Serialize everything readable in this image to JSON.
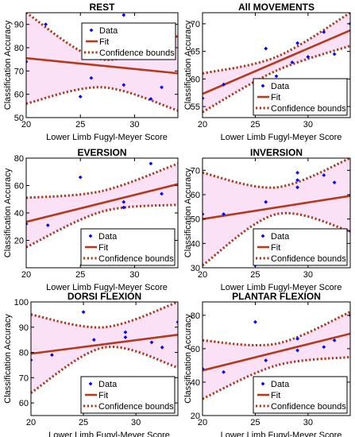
{
  "chart_data": [
    {
      "type": "scatter",
      "title": "REST",
      "xlabel": "Lower Limb Fugyl-Meyer Score",
      "ylabel": "Classification Accuracy",
      "xlim": [
        20,
        34
      ],
      "ylim": [
        50,
        95
      ],
      "xticks": [
        20,
        25,
        30
      ],
      "yticks": [
        50,
        60,
        70,
        80,
        90
      ],
      "data": [
        [
          20,
          74
        ],
        [
          21.8,
          90
        ],
        [
          25,
          59
        ],
        [
          26,
          67
        ],
        [
          29,
          94
        ],
        [
          29,
          64
        ],
        [
          31.5,
          58
        ],
        [
          32.5,
          63
        ]
      ],
      "fit": [
        75.5,
        69
      ],
      "bounds_lower": [
        [
          20,
          56
        ],
        [
          27,
          63
        ],
        [
          34,
          53
        ]
      ],
      "bounds_upper": [
        [
          20,
          95
        ],
        [
          27,
          75
        ],
        [
          34,
          85
        ]
      ],
      "legend": [
        "Data",
        "Fit",
        "Confidence bounds"
      ],
      "legend_position": "top-right",
      "grid": false
    },
    {
      "type": "scatter",
      "title": "All MOVEMENTS",
      "xlabel": "Lower Limb Fugyl-Meyer Score",
      "ylabel": "Classification Accuracy",
      "xlim": [
        20,
        34
      ],
      "ylim": [
        53,
        72
      ],
      "xticks": [
        20,
        25,
        30
      ],
      "yticks": [
        55,
        60,
        65,
        70
      ],
      "data": [
        [
          20,
          56.5
        ],
        [
          22,
          59
        ],
        [
          26,
          65.5
        ],
        [
          27,
          60.5
        ],
        [
          28.5,
          63
        ],
        [
          29,
          66.5
        ],
        [
          30,
          64
        ],
        [
          31.5,
          68.5
        ],
        [
          32.5,
          64.5
        ],
        [
          34,
          70
        ]
      ],
      "fit": [
        57.3,
        68.8
      ],
      "bounds_lower": [
        [
          20,
          54
        ],
        [
          27,
          61.5
        ],
        [
          34,
          66
        ]
      ],
      "bounds_upper": [
        [
          20,
          61
        ],
        [
          27,
          64
        ],
        [
          34,
          72
        ]
      ],
      "legend": [
        "Data",
        "Fit",
        "Confidence bounds"
      ],
      "legend_position": "bottom-right",
      "grid": false
    },
    {
      "type": "scatter",
      "title": "EVERSION",
      "xlabel": "Lower Limb Fugyl-Meyer Score",
      "ylabel": "Classification Accuracy",
      "xlim": [
        20,
        34
      ],
      "ylim": [
        0,
        80
      ],
      "xticks": [
        20,
        25,
        30
      ],
      "yticks": [
        20,
        40,
        60,
        80
      ],
      "data": [
        [
          20,
          32
        ],
        [
          22,
          31
        ],
        [
          25,
          66
        ],
        [
          29,
          48
        ],
        [
          29,
          44
        ],
        [
          31.5,
          76
        ],
        [
          32.5,
          54
        ]
      ],
      "fit": [
        33.5,
        61
      ],
      "bounds_lower": [
        [
          20,
          15
        ],
        [
          27,
          41
        ],
        [
          34,
          46
        ]
      ],
      "bounds_upper": [
        [
          20,
          51
        ],
        [
          27,
          56
        ],
        [
          34,
          76
        ]
      ],
      "legend": [
        "Data",
        "Fit",
        "Confidence bounds"
      ],
      "legend_position": "bottom-right",
      "grid": false
    },
    {
      "type": "scatter",
      "title": "INVERSION",
      "xlabel": "Lower Limb Fugyl-Meyer Score",
      "ylabel": "Classification Accuracy",
      "xlim": [
        20,
        34
      ],
      "ylim": [
        30,
        75
      ],
      "xticks": [
        20,
        25,
        30
      ],
      "yticks": [
        30,
        40,
        50,
        60,
        70
      ],
      "data": [
        [
          20,
          52
        ],
        [
          22,
          52
        ],
        [
          25,
          31
        ],
        [
          26,
          57
        ],
        [
          29,
          69
        ],
        [
          29,
          66
        ],
        [
          29,
          63
        ],
        [
          31.5,
          68
        ],
        [
          32.5,
          65
        ],
        [
          34,
          45
        ]
      ],
      "fit": [
        50,
        59.5
      ],
      "bounds_lower": [
        [
          20,
          31
        ],
        [
          27,
          52
        ],
        [
          34,
          45
        ]
      ],
      "bounds_upper": [
        [
          20,
          69
        ],
        [
          27,
          63
        ],
        [
          34,
          75
        ]
      ],
      "legend": [
        "Data",
        "Fit",
        "Confidence bounds"
      ],
      "legend_position": "bottom-right",
      "grid": false
    },
    {
      "type": "scatter",
      "title": "DORSI FLEXION",
      "xlabel": "Lower Limb Fugyl-Meyer Score",
      "ylabel": "Classification Accuracy",
      "xlim": [
        20,
        34
      ],
      "ylim": [
        55,
        100
      ],
      "xticks": [
        20,
        25,
        30
      ],
      "yticks": [
        60,
        70,
        80,
        90,
        100
      ],
      "data": [
        [
          20,
          77
        ],
        [
          22,
          79
        ],
        [
          25,
          96
        ],
        [
          26,
          85
        ],
        [
          29,
          88
        ],
        [
          29,
          86
        ],
        [
          31.5,
          84
        ],
        [
          32.5,
          82
        ],
        [
          34,
          92
        ]
      ],
      "fit": [
        79.5,
        87
      ],
      "bounds_lower": [
        [
          20,
          64
        ],
        [
          27,
          82
        ],
        [
          34,
          74
        ]
      ],
      "bounds_upper": [
        [
          20,
          95
        ],
        [
          27,
          90
        ],
        [
          34,
          100
        ]
      ],
      "legend": [
        "Data",
        "Fit",
        "Confidence bounds"
      ],
      "legend_position": "bottom-right",
      "grid": false
    },
    {
      "type": "scatter",
      "title": "PLANTAR FLEXION",
      "xlabel": "Lower Limb Fugyl-Meyer Score",
      "ylabel": "Classification Accuracy",
      "xlim": [
        20,
        34
      ],
      "ylim": [
        20,
        88
      ],
      "xticks": [
        20,
        25,
        30
      ],
      "yticks": [
        20,
        40,
        60,
        80
      ],
      "data": [
        [
          20,
          48
        ],
        [
          22,
          46
        ],
        [
          25,
          76
        ],
        [
          26,
          53
        ],
        [
          29,
          59
        ],
        [
          29,
          66
        ],
        [
          31.5,
          61
        ],
        [
          32.5,
          65
        ],
        [
          34,
          80
        ]
      ],
      "fit": [
        47,
        69
      ],
      "bounds_lower": [
        [
          20,
          30
        ],
        [
          27,
          50
        ],
        [
          34,
          55
        ]
      ],
      "bounds_upper": [
        [
          20,
          65
        ],
        [
          27,
          63
        ],
        [
          34,
          82
        ]
      ],
      "legend": [
        "Data",
        "Fit",
        "Confidence bounds"
      ],
      "legend_position": "bottom-right",
      "grid": false
    }
  ],
  "colors": {
    "data": "#0000ff",
    "fit": "#b23a1e",
    "bounds": "#a8391a",
    "band": "#f7c8ee"
  }
}
